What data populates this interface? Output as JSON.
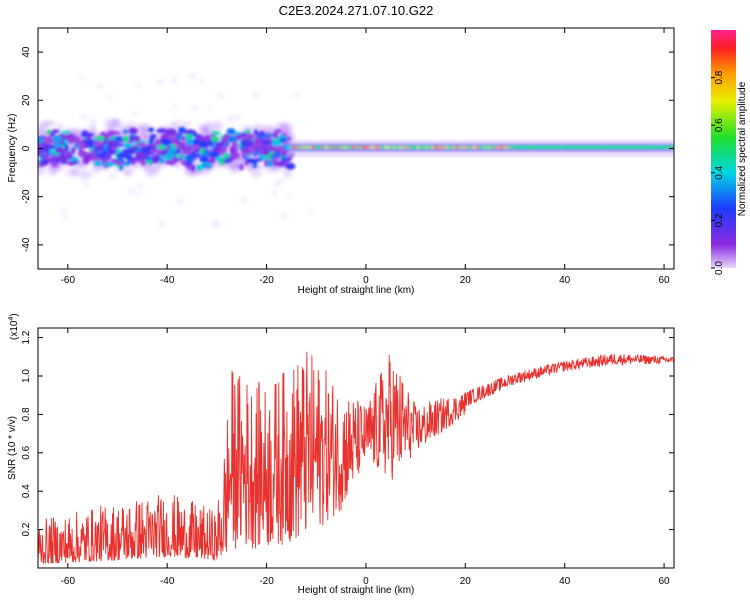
{
  "title": "C2E3.2024.271.07.10.G22",
  "chart_data": [
    {
      "type": "heatmap",
      "xlabel": "Height of straight line (km)",
      "ylabel": "Frequency (Hz)",
      "xlim": [
        -66,
        62
      ],
      "ylim": [
        -50,
        50
      ],
      "x_ticks": [
        "-60",
        "-40",
        "-20",
        "0",
        "20",
        "40",
        "60"
      ],
      "y_ticks": [
        "-40",
        "-20",
        "0",
        "20",
        "40"
      ],
      "colorbar": {
        "label": "Normalized spectral amplitude",
        "range": [
          0,
          1
        ],
        "ticks": [
          "0.0",
          "0.2",
          "0.4",
          "0.6",
          "0.8"
        ]
      },
      "regions": [
        {
          "x_from": -66,
          "x_to": -15,
          "freq_center": 0,
          "freq_spread": 6,
          "amplitude": "low (0.1-0.3), scattered"
        },
        {
          "x_from": -15,
          "x_to": 30,
          "freq_center": 0.5,
          "freq_spread": 2,
          "amplitude": "high (0.5-0.95) narrow line"
        },
        {
          "x_from": 30,
          "x_to": 62,
          "freq_center": 0.5,
          "freq_spread": 2,
          "amplitude": "medium (0.4-0.6) narrow line"
        }
      ]
    },
    {
      "type": "line",
      "xlabel": "Height of straight line (km)",
      "ylabel": "SNR (10 * v/v)",
      "multiplier": "(x10",
      "multiplier_exp": "4",
      "multiplier_close": ")",
      "xlim": [
        -66,
        62
      ],
      "ylim": [
        0,
        1.25
      ],
      "x_ticks": [
        "-60",
        "-40",
        "-20",
        "0",
        "20",
        "40",
        "60"
      ],
      "y_ticks": [
        "0.2",
        "0.4",
        "0.6",
        "0.8",
        "1.0",
        "1.2"
      ],
      "series_color": "#e8302c",
      "envelope": [
        {
          "x": -66,
          "lo": 0.02,
          "hi": 0.25
        },
        {
          "x": -50,
          "lo": 0.04,
          "hi": 0.35
        },
        {
          "x": -40,
          "lo": 0.06,
          "hi": 0.4
        },
        {
          "x": -30,
          "lo": 0.04,
          "hi": 0.3
        },
        {
          "x": -27,
          "lo": 0.1,
          "hi": 1.05
        },
        {
          "x": -20,
          "lo": 0.1,
          "hi": 0.95
        },
        {
          "x": -12,
          "lo": 0.15,
          "hi": 1.15
        },
        {
          "x": -5,
          "lo": 0.3,
          "hi": 0.95
        },
        {
          "x": 0,
          "lo": 0.55,
          "hi": 0.85
        },
        {
          "x": 5,
          "lo": 0.45,
          "hi": 1.15
        },
        {
          "x": 10,
          "lo": 0.6,
          "hi": 0.85
        },
        {
          "x": 20,
          "lo": 0.8,
          "hi": 0.92
        },
        {
          "x": 30,
          "lo": 0.93,
          "hi": 1.02
        },
        {
          "x": 40,
          "lo": 1.0,
          "hi": 1.08
        },
        {
          "x": 50,
          "lo": 1.03,
          "hi": 1.12
        },
        {
          "x": 62,
          "lo": 1.05,
          "hi": 1.1
        }
      ]
    }
  ]
}
